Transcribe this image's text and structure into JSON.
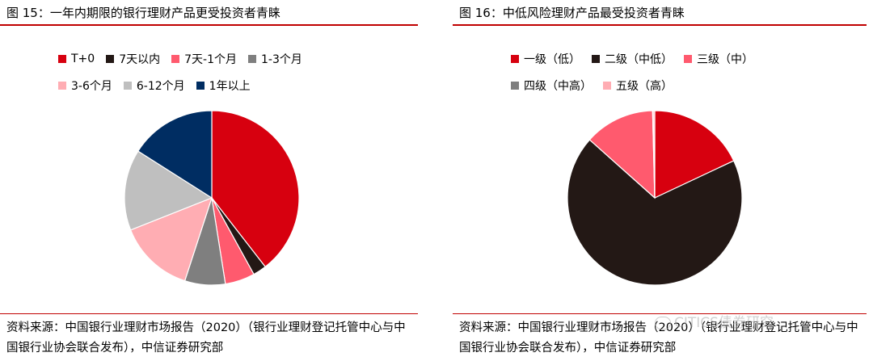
{
  "left": {
    "title": "图 15：一年内期限的银行理财产品更受投资者青睐",
    "source": "资料来源：中国银行业理财市场报告（2020）（银行业理财登记托管中心与中国银行业协会联合发布），中信证券研究部",
    "legend_rows": [
      [
        0,
        1,
        2,
        3
      ],
      [
        4,
        5,
        6
      ]
    ]
  },
  "right": {
    "title": "图 16：中低风险理财产品最受投资者青睐",
    "source": "资料来源：中国银行业理财市场报告（2020）（银行业理财登记托管中心与中国银行业协会联合发布），中信证券研究部",
    "legend_rows": [
      [
        0,
        1,
        2
      ],
      [
        3,
        4
      ]
    ]
  },
  "watermark": "CITICS债券研究",
  "chart_data": [
    {
      "type": "pie",
      "title": "图 15：一年内期限的银行理财产品更受投资者青睐",
      "start": "12 o'clock",
      "direction": "clockwise",
      "legend_placement": "top",
      "categories": [
        "T+0",
        "7天以内",
        "7天-1个月",
        "1-3个月",
        "3-6个月",
        "6-12个月",
        "1年以上"
      ],
      "values": [
        39.5,
        2.5,
        5.5,
        7.5,
        14,
        15,
        16
      ],
      "colors": [
        "#d7000f",
        "#231815",
        "#ff5a6e",
        "#7f7f7f",
        "#ffadb3",
        "#bfbfbf",
        "#002d62"
      ]
    },
    {
      "type": "pie",
      "title": "图 16：中低风险理财产品最受投资者青睐",
      "start": "12 o'clock",
      "direction": "clockwise",
      "legend_placement": "top",
      "categories": [
        "一级（低）",
        "二级（中低）",
        "三级（中）",
        "四级（中高）",
        "五级（高）"
      ],
      "values": [
        18,
        68.6,
        13,
        0.1,
        0.3
      ],
      "colors": [
        "#d7000f",
        "#231815",
        "#ff5a6e",
        "#7f7f7f",
        "#ffadb3"
      ]
    }
  ]
}
